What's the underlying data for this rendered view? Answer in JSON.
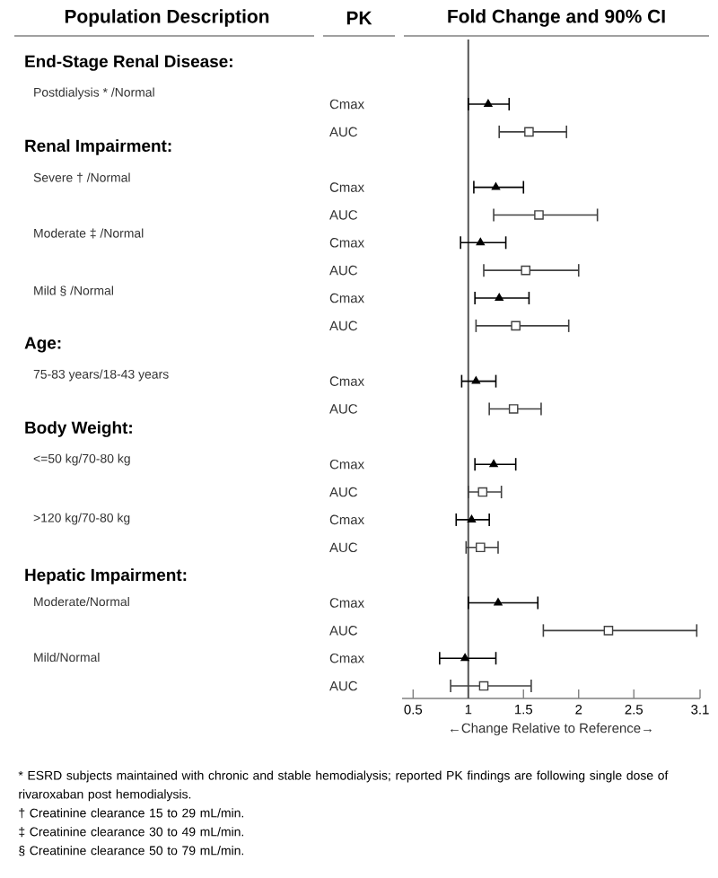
{
  "chart_data": {
    "type": "scatter",
    "orientation": "horizontal",
    "title": "Fold Change and 90% CI",
    "ylabel": "PK",
    "xlabel": "←Change Relative to Reference→",
    "categories": [
      "Cmax",
      "AUC",
      null,
      "Cmax",
      "AUC",
      "Cmax",
      "AUC",
      "Cmax",
      "AUC",
      null,
      "Cmax",
      "AUC",
      null,
      "Cmax",
      "AUC",
      "Cmax",
      "AUC",
      null,
      "Cmax",
      "AUC",
      "Cmax",
      "AUC"
    ],
    "series": [
      {
        "color": "#000000",
        "marker": "triangle",
        "values": [
          1.18,
          null,
          null,
          1.25,
          null,
          1.11,
          null,
          1.28,
          null,
          null,
          1.07,
          null,
          null,
          1.23,
          null,
          1.03,
          null,
          null,
          1.27,
          null,
          0.97,
          null
        ],
        "errors": [
          [
            1.0,
            1.37
          ],
          null,
          null,
          [
            1.05,
            1.5
          ],
          null,
          [
            0.93,
            1.34
          ],
          null,
          [
            1.06,
            1.55
          ],
          null,
          null,
          [
            0.94,
            1.25
          ],
          null,
          null,
          [
            1.06,
            1.43
          ],
          null,
          [
            0.89,
            1.19
          ],
          null,
          null,
          [
            1.0,
            1.63
          ],
          null,
          [
            0.74,
            1.25
          ],
          null
        ]
      },
      {
        "color": "#404040",
        "marker": "square",
        "values": [
          null,
          1.55,
          null,
          null,
          1.64,
          null,
          1.52,
          null,
          1.43,
          null,
          null,
          1.41,
          null,
          null,
          1.13,
          null,
          1.11,
          null,
          null,
          2.27,
          null,
          1.14
        ],
        "errors": [
          null,
          [
            1.28,
            1.89
          ],
          null,
          null,
          [
            1.23,
            2.17
          ],
          null,
          [
            1.14,
            2.0
          ],
          null,
          [
            1.07,
            1.91
          ],
          null,
          null,
          [
            1.19,
            1.66
          ],
          null,
          null,
          [
            1.0,
            1.3
          ],
          null,
          [
            0.98,
            1.27
          ],
          null,
          null,
          [
            1.68,
            3.07
          ],
          null,
          [
            0.84,
            1.57
          ]
        ]
      }
    ],
    "xlim": [
      0.4,
      3.1
    ],
    "xticks": [
      0.5,
      1,
      1.5,
      2,
      2.5,
      3.1
    ],
    "ref_lines": [
      {
        "axis": "x",
        "value": 1,
        "color": "#555555"
      }
    ],
    "annotations": [
      "Population Description",
      "End-Stage Renal Disease:",
      "Postdialysis * /Normal",
      "Renal Impairment:",
      "Severe † /Normal",
      "Moderate ‡ /Normal",
      "Mild § /Normal",
      "Age:",
      "75-83 years/18-43 years",
      "Body Weight:",
      "<=50 kg/70-80 kg",
      ">120 kg/70-80 kg",
      "Hepatic Impairment:",
      "Moderate/Normal",
      "Mild/Normal",
      "* ESRD subjects maintained with chronic and stable hemodialysis; reported PK findings are following single dose of rivaroxaban post hemodialysis.",
      "† Creatinine clearance 15 to 29 mL/min.",
      "‡ Creatinine clearance 30 to 49 mL/min.",
      "§ Creatinine clearance 50 to 79 mL/min."
    ]
  }
}
